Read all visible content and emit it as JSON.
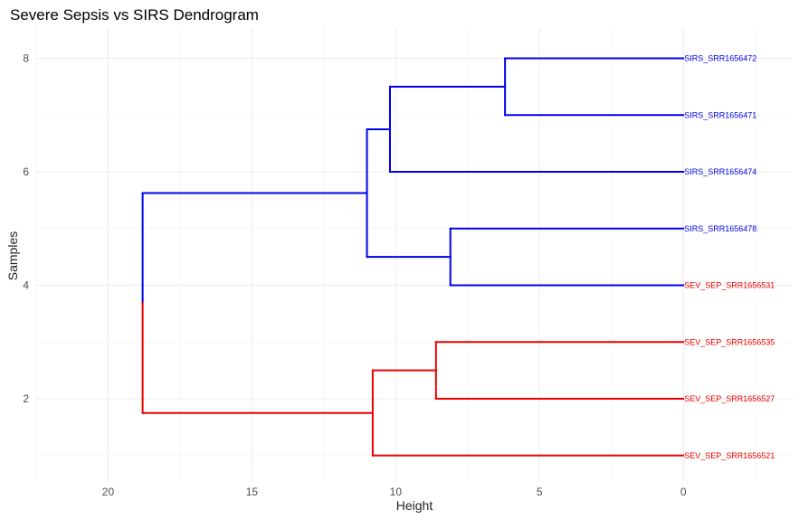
{
  "chart_data": {
    "type": "dendrogram",
    "title": "Severe Sepsis vs SIRS Dendrogram",
    "xlabel": "Height",
    "ylabel": "Samples",
    "x_axis": {
      "reversed": true,
      "lim": [
        22.5,
        -3.8
      ],
      "ticks": [
        20,
        15,
        10,
        5,
        0
      ]
    },
    "y_axis": {
      "lim": [
        0.55,
        8.55
      ],
      "ticks": [
        2,
        4,
        6,
        8
      ]
    },
    "grid": true,
    "colors": {
      "SIRS": "#0000ee",
      "SEV_SEP": "#ee0000"
    },
    "leaves": [
      {
        "position": 8,
        "label": "SIRS_SRR1656472",
        "group": "SIRS"
      },
      {
        "position": 7,
        "label": "SIRS_SRR1656471",
        "group": "SIRS"
      },
      {
        "position": 6,
        "label": "SIRS_SRR1656474",
        "group": "SIRS"
      },
      {
        "position": 5,
        "label": "SIRS_SRR1656478",
        "group": "SIRS"
      },
      {
        "position": 4,
        "label": "SEV_SEP_SRR1656531",
        "group": "SEV_SEP"
      },
      {
        "position": 3,
        "label": "SEV_SEP_SRR1656535",
        "group": "SEV_SEP"
      },
      {
        "position": 2,
        "label": "SEV_SEP_SRR1656527",
        "group": "SEV_SEP"
      },
      {
        "position": 1,
        "label": "SEV_SEP_SRR1656521",
        "group": "SEV_SEP"
      }
    ],
    "segments": [
      {
        "x1": 0,
        "y1": 8,
        "x2": 6.2,
        "y2": 8,
        "group": "SIRS"
      },
      {
        "x1": 0,
        "y1": 7,
        "x2": 6.2,
        "y2": 7,
        "group": "SIRS"
      },
      {
        "x1": 6.2,
        "y1": 7,
        "x2": 6.2,
        "y2": 8,
        "group": "SIRS"
      },
      {
        "x1": 6.2,
        "y1": 7.5,
        "x2": 10.2,
        "y2": 7.5,
        "group": "SIRS"
      },
      {
        "x1": 0,
        "y1": 6,
        "x2": 10.2,
        "y2": 6,
        "group": "SIRS"
      },
      {
        "x1": 10.2,
        "y1": 6,
        "x2": 10.2,
        "y2": 7.5,
        "group": "SIRS"
      },
      {
        "x1": 10.2,
        "y1": 6.75,
        "x2": 11.0,
        "y2": 6.75,
        "group": "SIRS"
      },
      {
        "x1": 0,
        "y1": 5,
        "x2": 8.1,
        "y2": 5,
        "group": "SIRS"
      },
      {
        "x1": 0,
        "y1": 4,
        "x2": 8.1,
        "y2": 4,
        "group": "SIRS"
      },
      {
        "x1": 8.1,
        "y1": 4,
        "x2": 8.1,
        "y2": 5,
        "group": "SIRS"
      },
      {
        "x1": 8.1,
        "y1": 4.5,
        "x2": 11.0,
        "y2": 4.5,
        "group": "SIRS"
      },
      {
        "x1": 11.0,
        "y1": 4.5,
        "x2": 11.0,
        "y2": 6.75,
        "group": "SIRS"
      },
      {
        "x1": 11.0,
        "y1": 5.625,
        "x2": 18.8,
        "y2": 5.625,
        "group": "SIRS"
      },
      {
        "x1": 18.8,
        "y1": 3.6875,
        "x2": 18.8,
        "y2": 5.625,
        "group": "SIRS"
      },
      {
        "x1": 18.8,
        "y1": 1.75,
        "x2": 18.8,
        "y2": 3.6875,
        "group": "SEV_SEP"
      },
      {
        "x1": 18.8,
        "y1": 1.75,
        "x2": 10.8,
        "y2": 1.75,
        "group": "SEV_SEP"
      },
      {
        "x1": 10.8,
        "y1": 1,
        "x2": 10.8,
        "y2": 2.5,
        "group": "SEV_SEP"
      },
      {
        "x1": 10.8,
        "y1": 1,
        "x2": 0,
        "y2": 1,
        "group": "SEV_SEP"
      },
      {
        "x1": 10.8,
        "y1": 2.5,
        "x2": 8.6,
        "y2": 2.5,
        "group": "SEV_SEP"
      },
      {
        "x1": 8.6,
        "y1": 2,
        "x2": 8.6,
        "y2": 3,
        "group": "SEV_SEP"
      },
      {
        "x1": 8.6,
        "y1": 3,
        "x2": 0,
        "y2": 3,
        "group": "SEV_SEP"
      },
      {
        "x1": 8.6,
        "y1": 2,
        "x2": 0,
        "y2": 2,
        "group": "SEV_SEP"
      }
    ]
  }
}
